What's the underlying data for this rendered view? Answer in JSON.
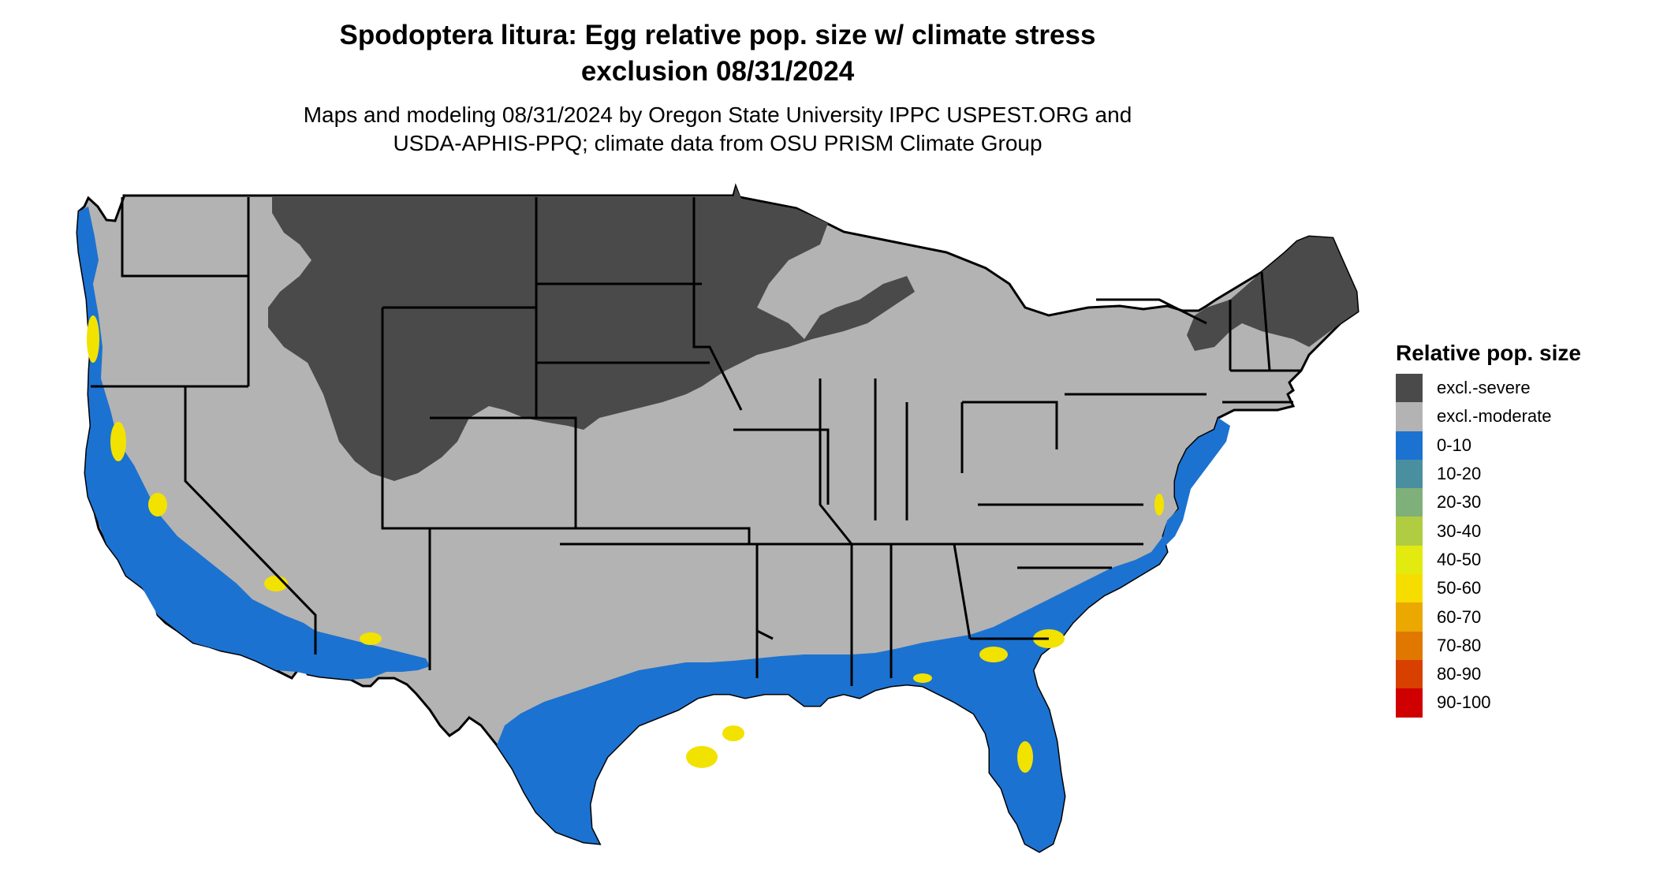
{
  "map": {
    "title_line1": "Spodoptera litura: Egg relative pop. size w/ climate stress",
    "title_line2": "exclusion 08/31/2024",
    "subtitle_line1": "Maps and modeling 08/31/2024 by Oregon State University IPPC USPEST.ORG and",
    "subtitle_line2": "USDA-APHIS-PPQ; climate data from OSU PRISM Climate Group"
  },
  "legend": {
    "title": "Relative pop. size",
    "items": [
      {
        "label": "excl.-severe",
        "color": "#4a4a4a"
      },
      {
        "label": "excl.-moderate",
        "color": "#b3b3b3"
      },
      {
        "label": "0-10",
        "color": "#1c72d0"
      },
      {
        "label": "10-20",
        "color": "#4a8fa0"
      },
      {
        "label": "20-30",
        "color": "#7fb07a"
      },
      {
        "label": "30-40",
        "color": "#b0cc40"
      },
      {
        "label": "40-50",
        "color": "#e2ea10"
      },
      {
        "label": "50-60",
        "color": "#f6dd00"
      },
      {
        "label": "60-70",
        "color": "#eaa800"
      },
      {
        "label": "70-80",
        "color": "#e07800"
      },
      {
        "label": "80-90",
        "color": "#d84000"
      },
      {
        "label": "90-100",
        "color": "#d00000"
      }
    ]
  },
  "colors": {
    "severe": "#4a4a4a",
    "moderate": "#b3b3b3",
    "low": "#1c72d0",
    "mid": "#f2e200",
    "high": "#eaa800",
    "border": "#000000"
  }
}
